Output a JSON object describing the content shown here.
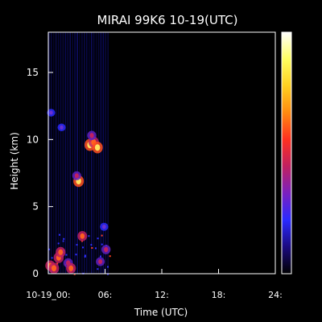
{
  "chart_data": {
    "type": "heatmap",
    "title": "MIRAI 99K6 10-19(UTC)",
    "xlabel": "Time (UTC)",
    "ylabel": "Height (km)",
    "xlim": [
      0,
      24
    ],
    "ylim": [
      0,
      18
    ],
    "x_ticks": [
      {
        "value": 0,
        "label": "10-19_00:"
      },
      {
        "value": 6,
        "label": "06:"
      },
      {
        "value": 12,
        "label": "12:"
      },
      {
        "value": 18,
        "label": "18:"
      },
      {
        "value": 24,
        "label": "24:"
      }
    ],
    "y_ticks": [
      {
        "value": 0,
        "label": "0"
      },
      {
        "value": 5,
        "label": "5"
      },
      {
        "value": 10,
        "label": "10"
      },
      {
        "value": 15,
        "label": "15"
      }
    ],
    "data_time_range_h": [
      0,
      6.5
    ],
    "colorbar": {
      "colors": [
        "#000000",
        "#1a0a80",
        "#2a2aff",
        "#7a20c0",
        "#c02060",
        "#ff3020",
        "#ff8a10",
        "#ffd020",
        "#ffff60",
        "#ffffff"
      ]
    },
    "echoes": [
      {
        "t": 1.4,
        "h": 10.9,
        "intensity": 0.35
      },
      {
        "t": 3.2,
        "h": 6.9,
        "intensity": 0.85
      },
      {
        "t": 3.0,
        "h": 7.3,
        "intensity": 0.5
      },
      {
        "t": 4.4,
        "h": 9.6,
        "intensity": 0.9
      },
      {
        "t": 4.8,
        "h": 9.8,
        "intensity": 0.8
      },
      {
        "t": 5.2,
        "h": 9.4,
        "intensity": 0.85
      },
      {
        "t": 4.6,
        "h": 10.3,
        "intensity": 0.55
      },
      {
        "t": 0.2,
        "h": 0.6,
        "intensity": 0.7
      },
      {
        "t": 0.6,
        "h": 0.4,
        "intensity": 0.8
      },
      {
        "t": 1.1,
        "h": 1.2,
        "intensity": 0.75
      },
      {
        "t": 1.3,
        "h": 1.6,
        "intensity": 0.7
      },
      {
        "t": 2.1,
        "h": 0.8,
        "intensity": 0.6
      },
      {
        "t": 2.4,
        "h": 0.4,
        "intensity": 0.7
      },
      {
        "t": 3.6,
        "h": 2.8,
        "intensity": 0.65
      },
      {
        "t": 5.5,
        "h": 0.9,
        "intensity": 0.5
      },
      {
        "t": 6.1,
        "h": 1.8,
        "intensity": 0.55
      },
      {
        "t": 0.3,
        "h": 12.0,
        "intensity": 0.35
      },
      {
        "t": 5.9,
        "h": 3.5,
        "intensity": 0.4
      }
    ]
  }
}
